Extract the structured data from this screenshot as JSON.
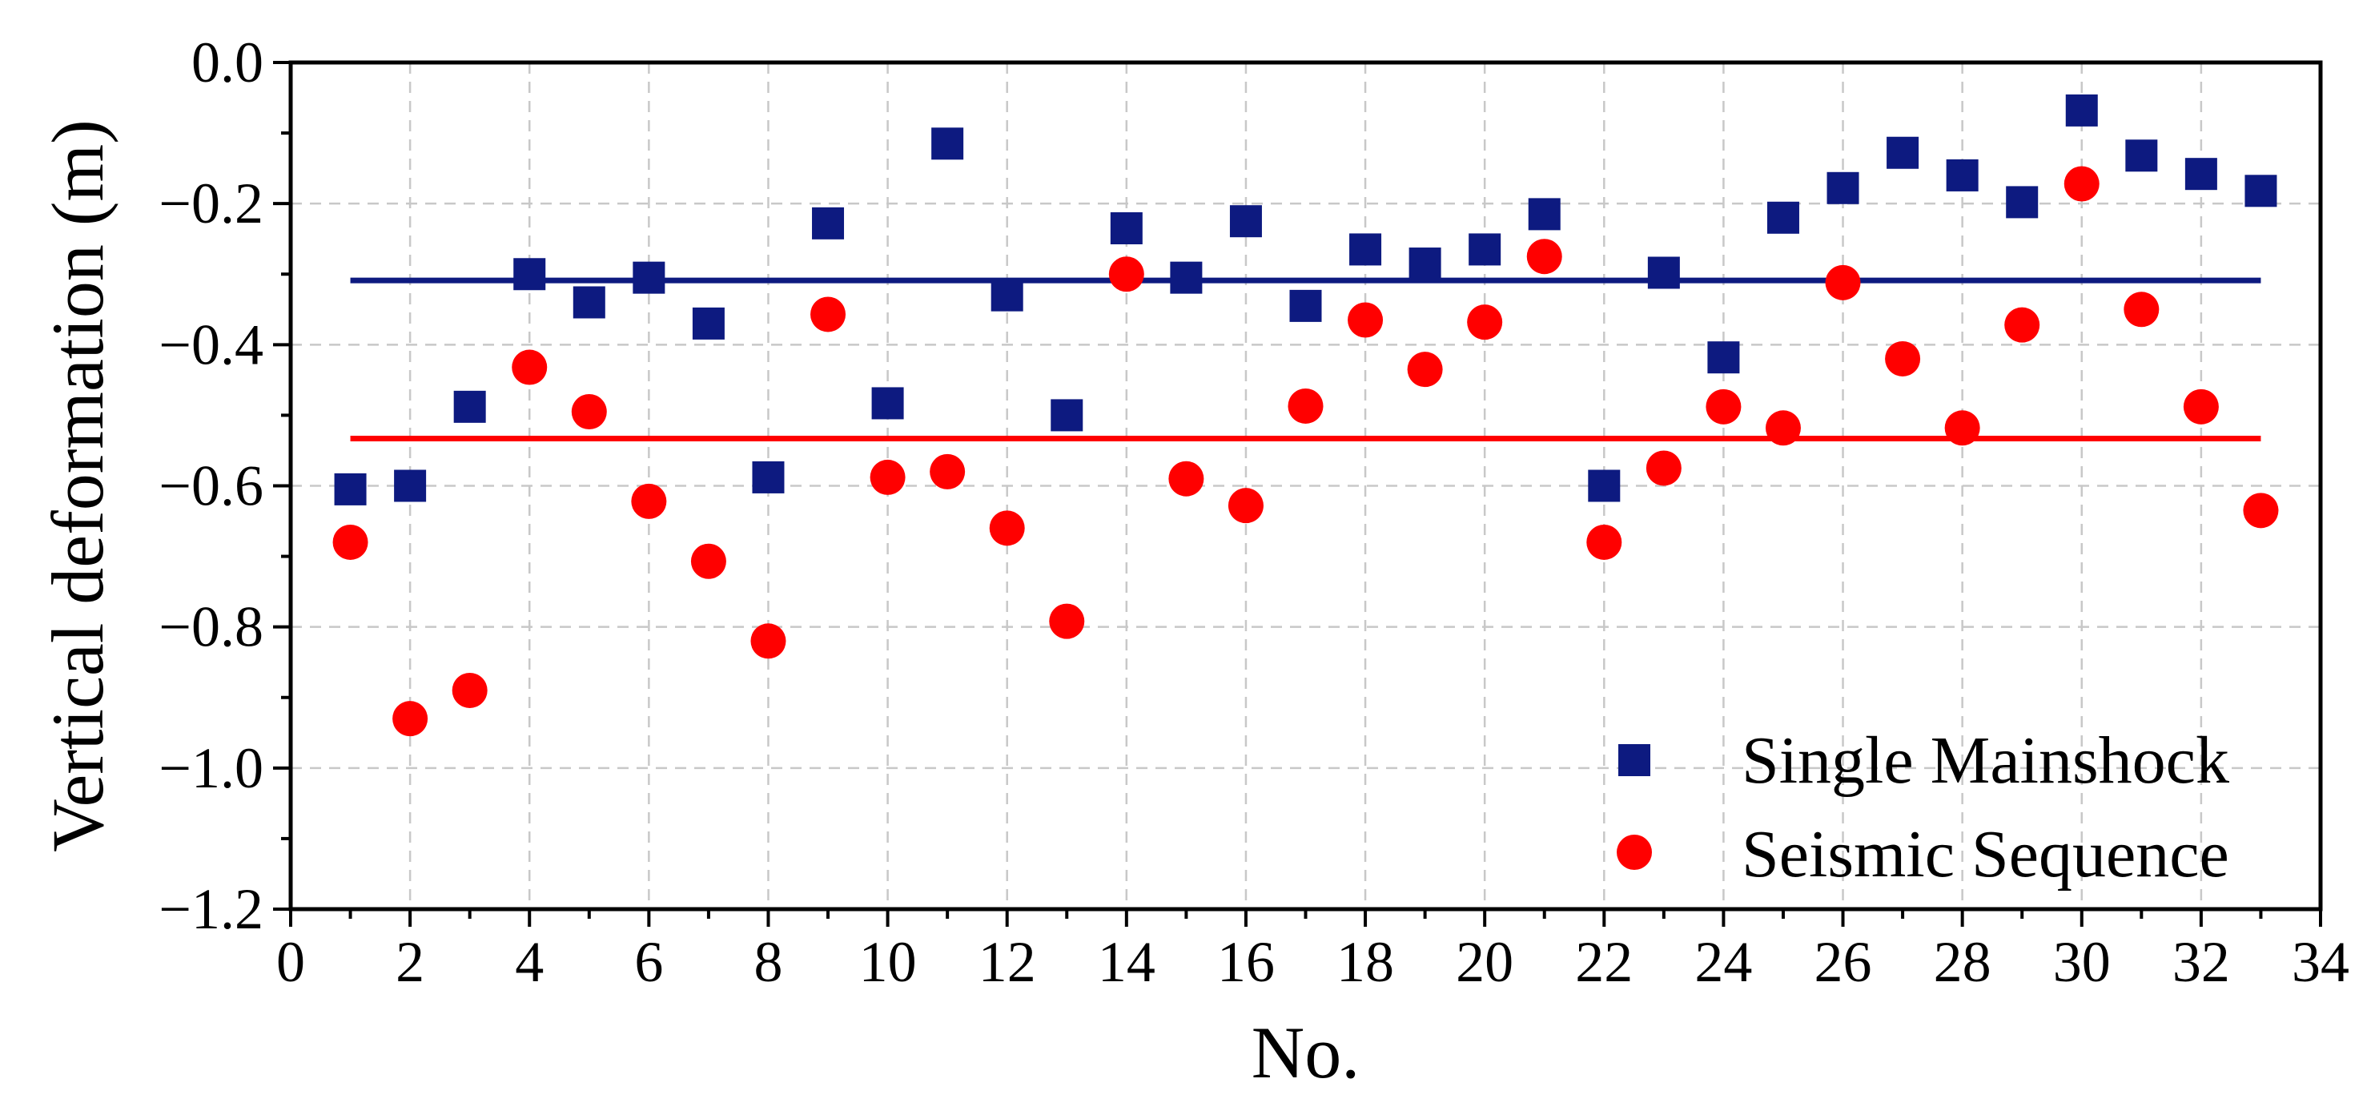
{
  "chart_data": {
    "type": "scatter",
    "xlabel": "No.",
    "ylabel": "Vertical deformation (m)",
    "xlim": [
      0,
      34
    ],
    "ylim": [
      -1.2,
      0.0
    ],
    "xticks": [
      "0",
      "2",
      "4",
      "6",
      "8",
      "10",
      "12",
      "14",
      "16",
      "18",
      "20",
      "22",
      "24",
      "26",
      "28",
      "30",
      "32",
      "34"
    ],
    "yticks": [
      "0.0",
      "−0.2",
      "−0.4",
      "−0.6",
      "−0.8",
      "−1.0",
      "−1.2"
    ],
    "grid": true,
    "legend_position": "bottom-right",
    "x": [
      1,
      2,
      3,
      4,
      5,
      6,
      7,
      8,
      9,
      10,
      11,
      12,
      13,
      14,
      15,
      16,
      17,
      18,
      19,
      20,
      21,
      22,
      23,
      24,
      25,
      26,
      27,
      28,
      29,
      30,
      31,
      32,
      33
    ],
    "series": [
      {
        "name": "Single Mainshock",
        "marker": "square",
        "color": "#0d1a80",
        "values": [
          -0.605,
          -0.6,
          -0.488,
          -0.3,
          -0.34,
          -0.305,
          -0.37,
          -0.588,
          -0.228,
          -0.483,
          -0.115,
          -0.33,
          -0.5,
          -0.235,
          -0.305,
          -0.225,
          -0.345,
          -0.265,
          -0.285,
          -0.265,
          -0.215,
          -0.6,
          -0.298,
          -0.418,
          -0.22,
          -0.178,
          -0.128,
          -0.16,
          -0.198,
          -0.068,
          -0.132,
          -0.158,
          -0.182
        ]
      },
      {
        "name": "Seismic Sequence",
        "marker": "circle",
        "color": "#ff0000",
        "values": [
          -0.68,
          -0.93,
          -0.89,
          -0.432,
          -0.495,
          -0.622,
          -0.707,
          -0.82,
          -0.357,
          -0.588,
          -0.58,
          -0.66,
          -0.792,
          -0.3,
          -0.59,
          -0.628,
          -0.487,
          -0.365,
          -0.435,
          -0.368,
          -0.275,
          -0.68,
          -0.575,
          -0.488,
          -0.518,
          -0.312,
          -0.42,
          -0.518,
          -0.372,
          -0.172,
          -0.35,
          -0.488,
          -0.635
        ]
      }
    ],
    "mean_lines": [
      {
        "series": "Single Mainshock",
        "value": -0.309,
        "x_range": [
          1,
          33
        ],
        "color": "#0d1a80"
      },
      {
        "series": "Seismic Sequence",
        "value": -0.533,
        "x_range": [
          1,
          33
        ],
        "color": "#ff0000"
      }
    ]
  }
}
